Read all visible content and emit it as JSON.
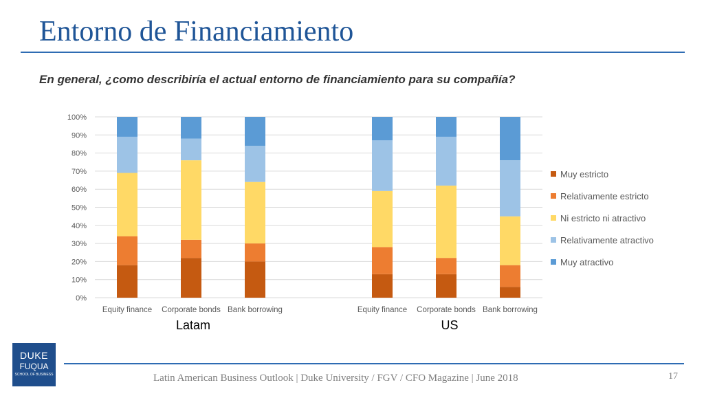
{
  "slide": {
    "title": "Entorno de Financiamiento",
    "question": "En general, ¿como describiría el actual entorno de financiamiento para su compañía?",
    "footer": "Latin American Business Outlook | Duke University / FGV / CFO Magazine | June 2018",
    "page_number": "17",
    "logo": {
      "line1": "DUKE",
      "line2": "FUQUA",
      "line3": "SCHOOL OF BUSINESS",
      "color": "#1f4e8c"
    }
  },
  "chart_data": {
    "type": "bar",
    "stacked": true,
    "normalized": true,
    "grid": true,
    "legend_position": "right",
    "ylim": [
      0,
      100
    ],
    "yticks": [
      "0%",
      "10%",
      "20%",
      "30%",
      "40%",
      "50%",
      "60%",
      "70%",
      "80%",
      "90%",
      "100%"
    ],
    "groups": [
      {
        "label": "Latam",
        "categories": [
          "Equity finance",
          "Corporate bonds",
          "Bank borrowing"
        ]
      },
      {
        "label": "US",
        "categories": [
          "Equity finance",
          "Corporate bonds",
          "Bank borrowing"
        ]
      }
    ],
    "series": [
      {
        "name": "Muy estricto",
        "color": "#c55a11",
        "values": [
          [
            18,
            22,
            20
          ],
          [
            13,
            13,
            6
          ]
        ]
      },
      {
        "name": "Relativamente estricto",
        "color": "#ed7d31",
        "values": [
          [
            16,
            10,
            10
          ],
          [
            15,
            9,
            12
          ]
        ]
      },
      {
        "name": "Ni estricto ni atractivo",
        "color": "#ffd966",
        "values": [
          [
            35,
            44,
            34
          ],
          [
            31,
            40,
            27
          ]
        ]
      },
      {
        "name": "Relativamente atractivo",
        "color": "#9dc3e6",
        "values": [
          [
            20,
            12,
            20
          ],
          [
            28,
            27,
            31
          ]
        ]
      },
      {
        "name": "Muy atractivo",
        "color": "#5b9bd5",
        "values": [
          [
            11,
            12,
            16
          ],
          [
            13,
            11,
            24
          ]
        ]
      }
    ]
  }
}
